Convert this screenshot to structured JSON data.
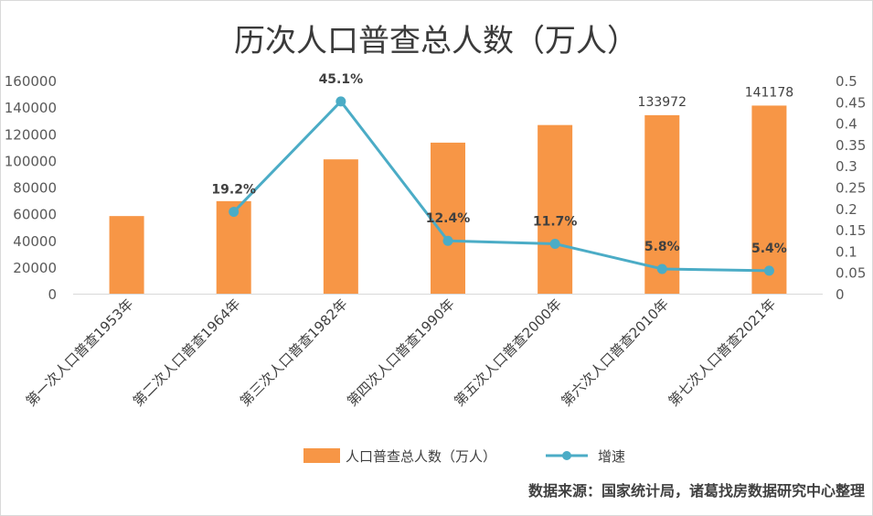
{
  "chart_data": {
    "type": "bar",
    "title": "历次人口普查总人数（万人）",
    "categories": [
      "第一次人口普查1953年",
      "第二次人口普查1964年",
      "第三次人口普查1982年",
      "第四次人口普查1990年",
      "第五次人口普查2000年",
      "第六次人口普查2010年",
      "第七次人口普查2021年"
    ],
    "series": [
      {
        "name": "人口普查总人数（万人）",
        "type": "bar",
        "axis": "left",
        "color": "#F79646",
        "values": [
          58260,
          69458,
          100818,
          113368,
          126583,
          133972,
          141178
        ],
        "data_labels": [
          null,
          null,
          null,
          null,
          null,
          "133972",
          "141178"
        ]
      },
      {
        "name": "增速",
        "type": "line",
        "axis": "right",
        "color": "#4BACC6",
        "values": [
          null,
          0.192,
          0.451,
          0.124,
          0.117,
          0.058,
          0.054
        ],
        "data_labels": [
          null,
          "19.2%",
          "45.1%",
          "12.4%",
          "11.7%",
          "5.8%",
          "5.4%"
        ]
      }
    ],
    "y_left": {
      "ylim": [
        0,
        160000
      ],
      "ticks": [
        "0",
        "20000",
        "40000",
        "60000",
        "80000",
        "100000",
        "120000",
        "140000",
        "160000"
      ]
    },
    "y_right": {
      "ylim": [
        0,
        0.5
      ],
      "ticks": [
        "0",
        "0.05",
        "0.1",
        "0.15",
        "0.2",
        "0.25",
        "0.3",
        "0.35",
        "0.4",
        "0.45",
        "0.5"
      ]
    },
    "grid": false,
    "legend_position": "bottom"
  },
  "source_note": "数据来源：国家统计局，诸葛找房数据研究中心整理"
}
